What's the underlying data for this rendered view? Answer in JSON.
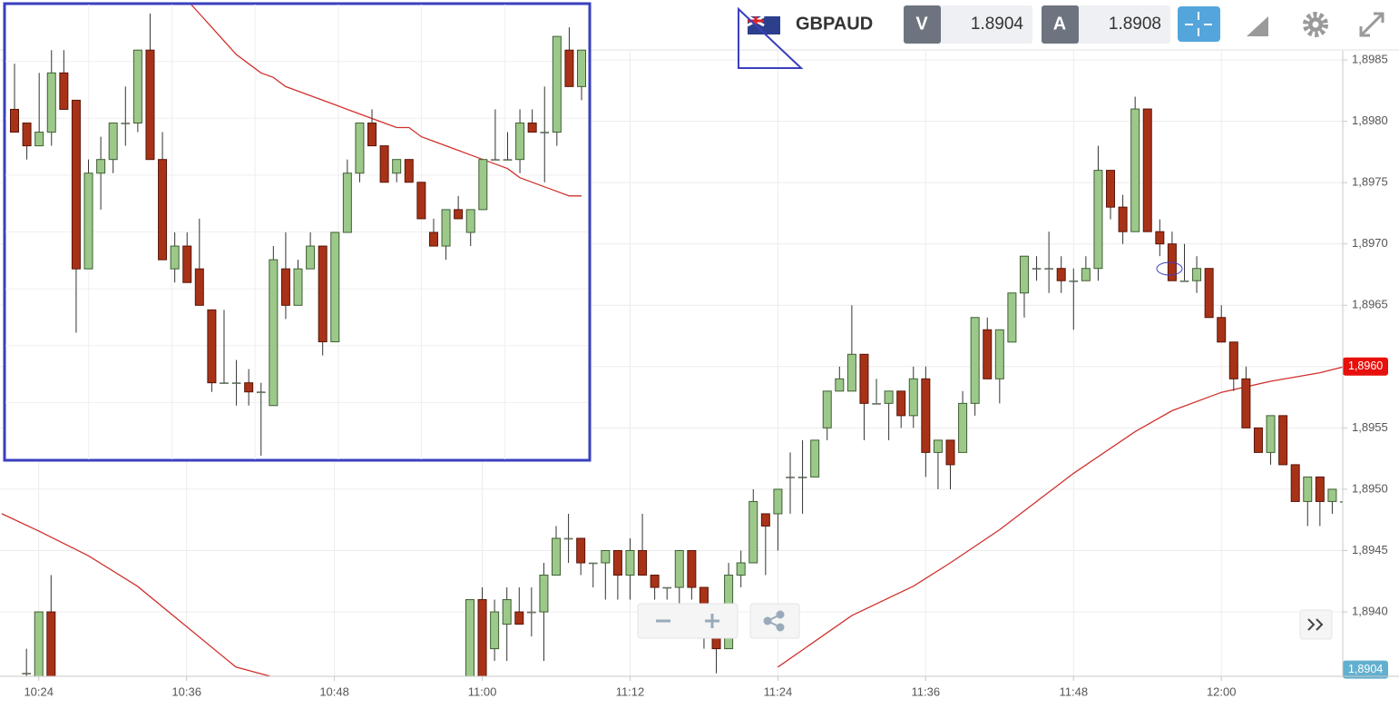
{
  "chart_data": [
    {
      "type": "candlestick",
      "title": "GBPAUD",
      "bid_label": "V",
      "bid": 1.8904,
      "ask_label": "A",
      "ask": 1.8908,
      "up_color": "#9cc98a",
      "down_color": "#a83218",
      "grid": true,
      "xlim": [
        "10:21",
        "12:10"
      ],
      "xticks": [
        "10:24",
        "10:36",
        "10:48",
        "11:00",
        "11:12",
        "11:24",
        "11:36",
        "11:48",
        "12:00"
      ],
      "ylim": [
        1.8935,
        1.8986
      ],
      "yticks": [
        {
          "value": 1.894,
          "label": "1,8940"
        },
        {
          "value": 1.8945,
          "label": "1,8945"
        },
        {
          "value": 1.895,
          "label": "1,8950"
        },
        {
          "value": 1.8955,
          "label": "1,8955"
        },
        {
          "value": 1.896,
          "label": "1,8960"
        },
        {
          "value": 1.8965,
          "label": "1,8965"
        },
        {
          "value": 1.897,
          "label": "1,8970"
        },
        {
          "value": 1.8975,
          "label": "1,8975"
        },
        {
          "value": 1.898,
          "label": "1,8980"
        },
        {
          "value": 1.8985,
          "label": "1,8985"
        }
      ],
      "x": [
        "10:23",
        "10:24",
        "10:25",
        "10:59",
        "11:00",
        "11:01",
        "11:02",
        "11:03",
        "11:04",
        "11:05",
        "11:06",
        "11:07",
        "11:08",
        "11:09",
        "11:10",
        "11:11",
        "11:12",
        "11:13",
        "11:14",
        "11:15",
        "11:16",
        "11:17",
        "11:18",
        "11:19",
        "11:20",
        "11:21",
        "11:22",
        "11:23",
        "11:24",
        "11:25",
        "11:26",
        "11:27",
        "11:28",
        "11:29",
        "11:30",
        "11:31",
        "11:32",
        "11:33",
        "11:34",
        "11:35",
        "11:36",
        "11:37",
        "11:38",
        "11:39",
        "11:40",
        "11:41",
        "11:42",
        "11:43",
        "11:44",
        "11:45",
        "11:46",
        "11:47",
        "11:48",
        "11:49",
        "11:50",
        "11:51",
        "11:52",
        "11:53",
        "11:54",
        "11:55",
        "11:56",
        "11:57",
        "11:58",
        "11:59",
        "12:00",
        "12:01",
        "12:02",
        "12:03",
        "12:04",
        "12:05",
        "12:06",
        "12:07",
        "12:08",
        "12:09",
        "12:10"
      ],
      "ohlc": [
        [
          1.8935,
          1.8937,
          1.8934,
          1.8935
        ],
        [
          1.8934,
          1.894,
          1.8933,
          1.894
        ],
        [
          1.894,
          1.8943,
          1.8933,
          1.8934
        ],
        [
          1.8934,
          1.8941,
          1.8932,
          1.8941
        ],
        [
          1.8941,
          1.8942,
          1.8932,
          1.8934
        ],
        [
          1.8937,
          1.8941,
          1.8936,
          1.894
        ],
        [
          1.8939,
          1.8942,
          1.8936,
          1.8941
        ],
        [
          1.894,
          1.8942,
          1.8939,
          1.8939
        ],
        [
          1.894,
          1.8942,
          1.8938,
          1.894
        ],
        [
          1.894,
          1.8944,
          1.8936,
          1.8943
        ],
        [
          1.8943,
          1.8947,
          1.8943,
          1.8946
        ],
        [
          1.8946,
          1.8948,
          1.8944,
          1.8946
        ],
        [
          1.8946,
          1.8946,
          1.8943,
          1.8944
        ],
        [
          1.8944,
          1.8944,
          1.8942,
          1.8944
        ],
        [
          1.8944,
          1.8945,
          1.8941,
          1.8945
        ],
        [
          1.8945,
          1.8945,
          1.8941,
          1.8943
        ],
        [
          1.8943,
          1.8946,
          1.8941,
          1.8945
        ],
        [
          1.8945,
          1.8948,
          1.8943,
          1.8943
        ],
        [
          1.8943,
          1.8943,
          1.8941,
          1.8942
        ],
        [
          1.8942,
          1.8942,
          1.8941,
          1.8942
        ],
        [
          1.8942,
          1.8945,
          1.8939,
          1.8945
        ],
        [
          1.8945,
          1.8945,
          1.8941,
          1.8942
        ],
        [
          1.8942,
          1.8942,
          1.8937,
          1.8938
        ],
        [
          1.8939,
          1.8939,
          1.8935,
          1.8937
        ],
        [
          1.8937,
          1.8944,
          1.8937,
          1.8943
        ],
        [
          1.8943,
          1.8945,
          1.8942,
          1.8944
        ],
        [
          1.8944,
          1.895,
          1.8944,
          1.8949
        ],
        [
          1.8948,
          1.8948,
          1.8943,
          1.8947
        ],
        [
          1.8948,
          1.895,
          1.8945,
          1.895
        ],
        [
          1.8951,
          1.8953,
          1.8948,
          1.8951
        ],
        [
          1.8951,
          1.8954,
          1.8948,
          1.8951
        ],
        [
          1.8951,
          1.8954,
          1.8951,
          1.8954
        ],
        [
          1.8955,
          1.8958,
          1.8954,
          1.8958
        ],
        [
          1.8958,
          1.896,
          1.8958,
          1.8959
        ],
        [
          1.8958,
          1.8965,
          1.8958,
          1.8961
        ],
        [
          1.8961,
          1.8961,
          1.8954,
          1.8957
        ],
        [
          1.8957,
          1.8959,
          1.8957,
          1.8957
        ],
        [
          1.8957,
          1.8958,
          1.8954,
          1.8958
        ],
        [
          1.8958,
          1.8958,
          1.8955,
          1.8956
        ],
        [
          1.8956,
          1.896,
          1.8955,
          1.8959
        ],
        [
          1.8959,
          1.896,
          1.8951,
          1.8953
        ],
        [
          1.8953,
          1.8954,
          1.895,
          1.8954
        ],
        [
          1.8954,
          1.8954,
          1.895,
          1.8952
        ],
        [
          1.8953,
          1.8958,
          1.8953,
          1.8957
        ],
        [
          1.8957,
          1.8964,
          1.8956,
          1.8964
        ],
        [
          1.8963,
          1.8964,
          1.8959,
          1.8959
        ],
        [
          1.8959,
          1.8963,
          1.8957,
          1.8963
        ],
        [
          1.8962,
          1.8966,
          1.8962,
          1.8966
        ],
        [
          1.8966,
          1.8969,
          1.8964,
          1.8969
        ],
        [
          1.8968,
          1.8969,
          1.8967,
          1.8968
        ],
        [
          1.8968,
          1.8971,
          1.8966,
          1.8968
        ],
        [
          1.8968,
          1.8969,
          1.8966,
          1.8967
        ],
        [
          1.8967,
          1.8968,
          1.8963,
          1.8967
        ],
        [
          1.8967,
          1.8969,
          1.8967,
          1.8968
        ],
        [
          1.8968,
          1.8978,
          1.8967,
          1.8976
        ],
        [
          1.8976,
          1.8976,
          1.8972,
          1.8973
        ],
        [
          1.8973,
          1.8974,
          1.897,
          1.8971
        ],
        [
          1.8971,
          1.8982,
          1.8971,
          1.8981
        ],
        [
          1.8981,
          1.8981,
          1.8971,
          1.8971
        ],
        [
          1.8971,
          1.8972,
          1.8969,
          1.897
        ],
        [
          1.897,
          1.8971,
          1.8967,
          1.8967
        ],
        [
          1.8967,
          1.897,
          1.8967,
          1.8967
        ],
        [
          1.8967,
          1.8969,
          1.8966,
          1.8968
        ],
        [
          1.8968,
          1.8968,
          1.8964,
          1.8964
        ],
        [
          1.8964,
          1.8965,
          1.8962,
          1.8962
        ],
        [
          1.8962,
          1.8962,
          1.8958,
          1.8959
        ],
        [
          1.8959,
          1.896,
          1.8955,
          1.8955
        ],
        [
          1.8955,
          1.8955,
          1.8953,
          1.8953
        ],
        [
          1.8953,
          1.8956,
          1.8952,
          1.8956
        ],
        [
          1.8956,
          1.8956,
          1.8952,
          1.8952
        ],
        [
          1.8952,
          1.8952,
          1.8949,
          1.8949
        ],
        [
          1.8949,
          1.8951,
          1.8947,
          1.8951
        ],
        [
          1.8951,
          1.8951,
          1.8947,
          1.8949
        ],
        [
          1.8949,
          1.895,
          1.8948,
          1.895
        ],
        [
          1.8949,
          1.895,
          1.8948,
          1.8949
        ]
      ],
      "ma": {
        "color": "#d0312d",
        "x": [
          "10:21",
          "10:24",
          "10:28",
          "10:32",
          "10:36",
          "10:40",
          "10:43",
          "11:00",
          "11:24",
          "11:30",
          "11:35",
          "11:38",
          "11:42",
          "11:48",
          "11:53",
          "11:56",
          "12:00",
          "12:04",
          "12:08",
          "12:10"
        ],
        "values": [
          1.8948,
          1.89466,
          1.89446,
          1.89421,
          1.89388,
          1.89355,
          1.89347,
          null,
          1.89355,
          1.89397,
          1.89421,
          1.8944,
          1.89467,
          1.89513,
          1.89547,
          1.89564,
          1.89579,
          1.89588,
          1.89595,
          1.896
        ]
      },
      "price_labels": [
        {
          "value": 1.896,
          "label": "1,8960",
          "color": "#e8100c"
        },
        {
          "value": 1.8904,
          "label": "1,8904",
          "color": "#62b0cf"
        }
      ]
    },
    {
      "type": "candlestick",
      "up_color": "#9cc98a",
      "down_color": "#a83218",
      "grid": true,
      "ylim": [
        0,
        100
      ],
      "ohlc": [
        [
          77,
          87,
          72,
          72
        ],
        [
          74,
          74,
          66,
          69
        ],
        [
          69,
          85,
          69,
          72
        ],
        [
          72,
          90,
          69,
          85
        ],
        [
          85,
          90,
          77,
          77
        ],
        [
          79,
          79,
          28,
          42
        ],
        [
          42,
          66,
          42,
          63
        ],
        [
          63,
          71,
          55,
          66
        ],
        [
          66,
          74,
          63,
          74
        ],
        [
          74,
          82,
          69,
          74
        ],
        [
          74,
          90,
          72,
          90
        ],
        [
          90,
          98,
          66,
          66
        ],
        [
          66,
          72,
          44,
          44
        ],
        [
          42,
          50,
          39,
          47
        ],
        [
          47,
          50,
          39,
          39
        ],
        [
          42,
          53,
          34,
          34
        ],
        [
          33,
          33,
          15,
          17
        ],
        [
          17,
          33,
          17,
          17
        ],
        [
          17,
          22,
          12,
          17
        ],
        [
          17,
          20,
          12,
          15
        ],
        [
          15,
          17,
          1,
          15
        ],
        [
          12,
          47,
          12,
          44
        ],
        [
          42,
          50,
          31,
          34
        ],
        [
          34,
          44,
          34,
          42
        ],
        [
          42,
          50,
          42,
          47
        ],
        [
          47,
          47,
          23,
          26
        ],
        [
          26,
          50,
          26,
          50
        ],
        [
          50,
          66,
          50,
          63
        ],
        [
          63,
          74,
          61,
          74
        ],
        [
          74,
          77,
          69,
          69
        ],
        [
          69,
          69,
          61,
          61
        ],
        [
          63,
          66,
          61,
          66
        ],
        [
          66,
          66,
          61,
          61
        ],
        [
          61,
          61,
          53,
          53
        ],
        [
          50,
          53,
          47,
          47
        ],
        [
          47,
          55,
          44,
          55
        ],
        [
          55,
          58,
          53,
          53
        ],
        [
          50,
          55,
          47,
          55
        ],
        [
          55,
          66,
          55,
          66
        ],
        [
          66,
          77,
          66,
          66
        ],
        [
          66,
          72,
          66,
          66
        ],
        [
          66,
          77,
          63,
          74
        ],
        [
          74,
          77,
          72,
          72
        ],
        [
          72,
          82,
          61,
          72
        ],
        [
          72,
          93,
          69,
          93
        ],
        [
          90,
          95,
          82,
          82
        ],
        [
          82,
          90,
          79,
          90
        ]
      ],
      "ma": {
        "color": "#d0312d",
        "values": [
          null,
          null,
          null,
          null,
          null,
          null,
          null,
          null,
          null,
          null,
          null,
          null,
          null,
          null,
          101,
          98,
          95,
          92,
          89,
          87,
          85,
          84,
          82,
          81,
          80,
          79,
          78,
          77,
          76,
          75,
          74,
          73,
          73,
          71,
          70,
          69,
          68,
          67,
          66,
          65,
          64,
          62,
          61,
          60,
          59,
          58,
          58
        ]
      }
    }
  ]
}
